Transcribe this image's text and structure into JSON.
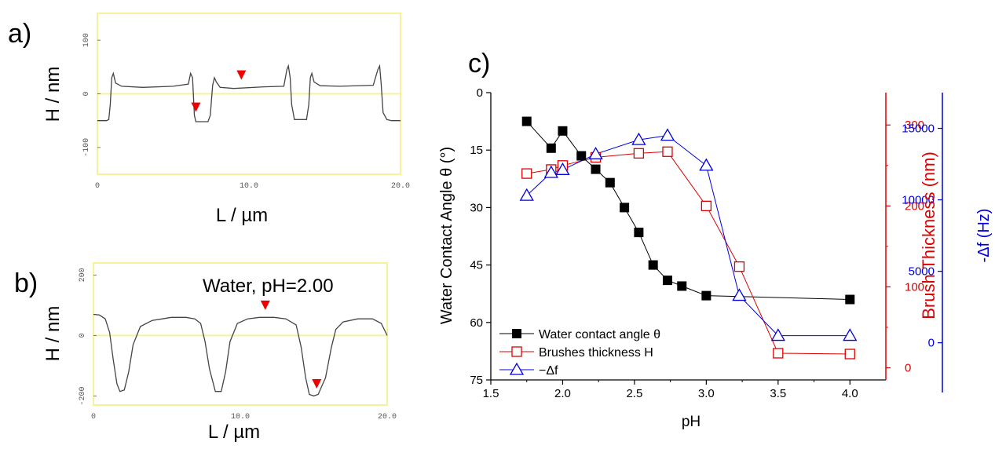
{
  "panel_labels": {
    "a": "a)",
    "b": "b)",
    "c": "c)"
  },
  "chart_data": [
    {
      "id": "a",
      "type": "line",
      "ylabel": "H / nm",
      "xlabel": "L / µm",
      "xlim": [
        0,
        20
      ],
      "ylim": [
        -150,
        150
      ],
      "x_ticks": [
        {
          "v": 0,
          "label": "0"
        },
        {
          "v": 10,
          "label": "10.0"
        },
        {
          "v": 20,
          "label": "20.0"
        }
      ],
      "y_ticks": [
        {
          "v": 100,
          "label": "100"
        },
        {
          "v": 0,
          "label": "0"
        },
        {
          "v": -100,
          "label": "-100"
        }
      ],
      "frame_color": "#f5f29a",
      "zero_line_color": "#f5f29a",
      "series": [
        {
          "color": "#444444",
          "x": [
            0,
            0.6,
            0.75,
            0.85,
            0.95,
            1.05,
            1.2,
            1.6,
            3,
            5,
            6.0,
            6.15,
            6.28,
            6.4,
            6.5,
            7.3,
            7.45,
            7.6,
            7.72,
            7.85,
            8.1,
            9,
            11,
            12.3,
            12.5,
            12.6,
            12.72,
            12.82,
            13.0,
            13.8,
            13.95,
            14.05,
            14.15,
            14.3,
            14.7,
            16,
            18.2,
            18.5,
            18.62,
            18.72,
            18.85,
            19.1,
            19.4,
            20
          ],
          "y": [
            -50,
            -50,
            -48,
            -20,
            30,
            38,
            20,
            14,
            12,
            14,
            18,
            38,
            30,
            -40,
            -52,
            -52,
            -40,
            15,
            30,
            22,
            12,
            10,
            13,
            14,
            45,
            52,
            30,
            -20,
            -48,
            -48,
            -20,
            30,
            38,
            22,
            15,
            14,
            16,
            45,
            52,
            20,
            -35,
            -48,
            -50,
            -50
          ]
        }
      ],
      "markers": [
        {
          "x": 6.5,
          "y": -25,
          "shape": "down-triangle",
          "color": "#ee0000"
        },
        {
          "x": 9.5,
          "y": 35,
          "shape": "down-triangle",
          "color": "#ee0000"
        }
      ]
    },
    {
      "id": "b",
      "type": "line",
      "ylabel": "H / nm",
      "xlabel": "L / µm",
      "annotation": "Water, pH=2.00",
      "xlim": [
        0,
        20
      ],
      "ylim": [
        -230,
        240
      ],
      "x_ticks": [
        {
          "v": 0,
          "label": "0"
        },
        {
          "v": 10,
          "label": "10.0"
        },
        {
          "v": 20,
          "label": "20.0"
        }
      ],
      "y_ticks": [
        {
          "v": 200,
          "label": "200"
        },
        {
          "v": 0,
          "label": "0"
        },
        {
          "v": -200,
          "label": "-200"
        }
      ],
      "frame_color": "#f5f29a",
      "zero_line_color": "#f5f29a",
      "series": [
        {
          "color": "#444444",
          "x": [
            0,
            0.4,
            0.8,
            1.1,
            1.35,
            1.6,
            1.8,
            2.1,
            2.4,
            2.7,
            3.2,
            4.0,
            4.7,
            5.3,
            6.3,
            6.9,
            7.3,
            7.6,
            7.9,
            8.3,
            8.7,
            9.0,
            9.3,
            9.8,
            10.5,
            11.3,
            12.3,
            13.1,
            13.8,
            14.15,
            14.45,
            14.7,
            15.0,
            15.3,
            15.8,
            16.2,
            16.5,
            17.0,
            18.0,
            19.0,
            19.6,
            20
          ],
          "y": [
            70,
            68,
            55,
            10,
            -80,
            -160,
            -185,
            -180,
            -120,
            -30,
            30,
            50,
            55,
            60,
            60,
            55,
            40,
            -20,
            -110,
            -185,
            -185,
            -120,
            -20,
            40,
            55,
            60,
            60,
            55,
            35,
            -40,
            -140,
            -195,
            -200,
            -195,
            -140,
            -40,
            20,
            45,
            55,
            55,
            40,
            0
          ]
        }
      ],
      "markers": [
        {
          "x": 11.7,
          "y": 100,
          "shape": "down-triangle",
          "color": "#ee0000"
        },
        {
          "x": 15.2,
          "y": -160,
          "shape": "down-triangle",
          "color": "#ee0000"
        }
      ]
    },
    {
      "id": "c",
      "type": "line",
      "xlabel": "pH",
      "xlim": [
        1.5,
        4.25
      ],
      "x_ticks": [
        1.5,
        2.0,
        2.5,
        3.0,
        3.5,
        4.0
      ],
      "x_tick_labels": [
        "1.5",
        "2.0",
        "2.5",
        "3.0",
        "3.5",
        "4.0"
      ],
      "axes": [
        {
          "side": "left",
          "label": "Water Contact Angle θ (°)",
          "range": [
            75,
            0
          ],
          "inverted": true,
          "ticks": [
            0,
            15,
            30,
            45,
            60,
            75
          ],
          "tick_labels": [
            "0",
            "15",
            "30",
            "45",
            "60",
            "75"
          ],
          "color": "#000000"
        },
        {
          "side": "right",
          "label": "Brush Thickness (nm)",
          "range": [
            -15,
            340
          ],
          "ticks": [
            0,
            100,
            200,
            300
          ],
          "tick_labels": [
            "0",
            "100",
            "200",
            "300"
          ],
          "color": "#dd0000"
        },
        {
          "side": "right-outer",
          "label": "-Δf (Hz)",
          "range": [
            -2600,
            17500
          ],
          "ticks": [
            0,
            5000,
            10000,
            15000
          ],
          "tick_labels": [
            "0",
            "5000",
            "10000",
            "15000"
          ],
          "color": "#0000dd"
        }
      ],
      "series": [
        {
          "name": "Water contact angle θ",
          "axis": 0,
          "marker": "filled-square",
          "color": "#000000",
          "x": [
            1.75,
            1.92,
            2.0,
            2.13,
            2.23,
            2.33,
            2.43,
            2.53,
            2.63,
            2.73,
            2.83,
            3.0,
            4.0
          ],
          "y": [
            7.5,
            14.5,
            10,
            16.5,
            20,
            23.5,
            30,
            36.5,
            45,
            49,
            50.5,
            53,
            54
          ]
        },
        {
          "name": "Brushes thickness H",
          "axis": 1,
          "marker": "open-square",
          "color": "#dd0000",
          "x": [
            1.75,
            1.92,
            2.0,
            2.23,
            2.53,
            2.73,
            3.0,
            3.23,
            3.5,
            4.0
          ],
          "y": [
            240,
            245,
            250,
            260,
            265,
            267,
            200,
            125,
            18,
            17
          ]
        },
        {
          "name": "−Δf",
          "axis": 2,
          "marker": "open-triangle",
          "color": "#0000dd",
          "x": [
            1.75,
            1.92,
            2.0,
            2.23,
            2.53,
            2.73,
            3.0,
            3.23,
            3.5,
            4.0
          ],
          "y": [
            10300,
            11900,
            12100,
            13200,
            14200,
            14500,
            12400,
            3300,
            500,
            500
          ]
        }
      ]
    }
  ]
}
